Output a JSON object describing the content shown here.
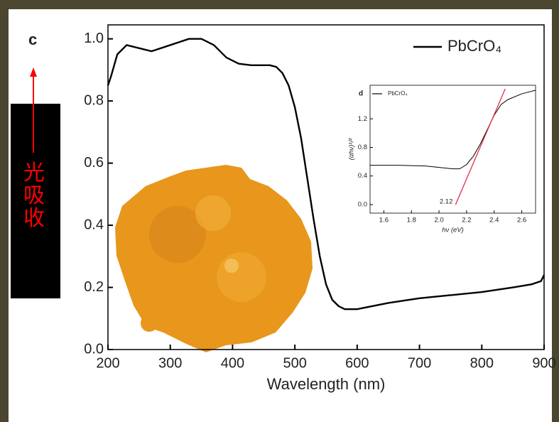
{
  "chart_data": [
    {
      "type": "line",
      "panel_label": "c",
      "xlabel": "Wavelength (nm)",
      "x": [
        200,
        205,
        215,
        230,
        250,
        270,
        300,
        330,
        350,
        370,
        390,
        410,
        430,
        460,
        470,
        480,
        490,
        500,
        510,
        520,
        530,
        540,
        550,
        560,
        570,
        580,
        600,
        650,
        700,
        750,
        800,
        850,
        880,
        895,
        900
      ],
      "series": [
        {
          "name": "PbCrO₄",
          "color": "#000000",
          "values": [
            0.85,
            0.88,
            0.95,
            0.98,
            0.97,
            0.96,
            0.98,
            1.0,
            1.0,
            0.98,
            0.94,
            0.92,
            0.915,
            0.915,
            0.91,
            0.89,
            0.85,
            0.78,
            0.68,
            0.55,
            0.42,
            0.3,
            0.21,
            0.16,
            0.14,
            0.13,
            0.13,
            0.15,
            0.165,
            0.175,
            0.185,
            0.2,
            0.21,
            0.22,
            0.24
          ]
        }
      ],
      "xlim": [
        200,
        900
      ],
      "ylim": [
        0,
        1.045
      ],
      "xticks": [
        200,
        300,
        400,
        500,
        600,
        700,
        800,
        900
      ],
      "yticks": [
        {
          "value": 0,
          "label": "0.0"
        },
        0.2,
        0.4,
        0.6,
        0.8,
        {
          "value": 1,
          "label": "1.0"
        }
      ],
      "annotation": "光吸收",
      "annotation_color": "#ff0000"
    },
    {
      "type": "line",
      "panel_label": "d",
      "xlabel": "hν (eV)",
      "ylabel": "(αhν)¹/²",
      "x": [
        1.5,
        1.7,
        1.9,
        2.0,
        2.1,
        2.15,
        2.2,
        2.25,
        2.3,
        2.35,
        2.4,
        2.45,
        2.5,
        2.6,
        2.7
      ],
      "series": [
        {
          "name": "PbCrO₄",
          "color": "#000000",
          "values": [
            0.55,
            0.55,
            0.54,
            0.52,
            0.5,
            0.5,
            0.56,
            0.68,
            0.85,
            1.05,
            1.25,
            1.4,
            1.47,
            1.55,
            1.6
          ]
        }
      ],
      "tangent": {
        "x": [
          2.12,
          2.48
        ],
        "values": [
          0,
          1.62
        ],
        "color": "#e0304a"
      },
      "tangent_label": "2.12",
      "xlim": [
        1.5,
        2.7
      ],
      "ylim": [
        -0.12,
        1.67
      ],
      "xticks": [
        1.6,
        1.8,
        {
          "value": 2,
          "label": "2.0"
        },
        2.2,
        2.4,
        2.6
      ],
      "yticks": [
        {
          "value": 0,
          "label": "0.0"
        },
        0.4,
        0.8,
        1.2
      ]
    }
  ]
}
